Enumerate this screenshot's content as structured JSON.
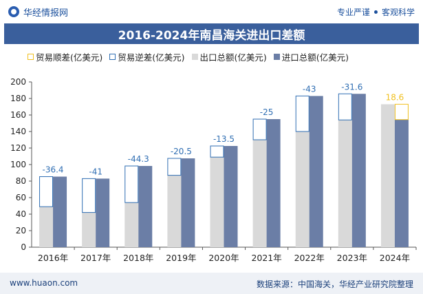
{
  "header": {
    "brand": "华经情报网",
    "tagline_a": "专业严谨",
    "tagline_b": "客观科学"
  },
  "title": "2016-2024年南昌海关进出口差额",
  "legend": [
    {
      "label": "贸易顺差(亿美元)",
      "color": "#f0c020",
      "outline": true
    },
    {
      "label": "贸易逆差(亿美元)",
      "color": "#2f6eb3",
      "outline": true
    },
    {
      "label": "出口总额(亿美元)",
      "color": "#d9d9d9",
      "outline": false
    },
    {
      "label": "进口总额(亿美元)",
      "color": "#6b7ea6",
      "outline": false
    }
  ],
  "footer": {
    "website": "www.huaon.com",
    "source": "数据来源：中国海关，华经产业研究院整理"
  },
  "chart_data": {
    "type": "bar",
    "categories": [
      "2016年",
      "2017年",
      "2018年",
      "2019年",
      "2020年",
      "2021年",
      "2022年",
      "2023年",
      "2024年"
    ],
    "series": [
      {
        "name": "出口总额(亿美元)",
        "values": [
          49,
          42,
          54,
          87,
          109,
          130,
          140,
          154,
          173
        ],
        "color": "#d9d9d9"
      },
      {
        "name": "进口总额(亿美元)",
        "values": [
          85.4,
          83,
          98.3,
          107.5,
          122.5,
          155,
          183,
          185.6,
          154.4
        ],
        "color": "#6b7ea6"
      }
    ],
    "balance": [
      "-36.4",
      "-41",
      "-44.3",
      "-20.5",
      "-13.5",
      "-25",
      "-43",
      "-31.6",
      "18.6"
    ],
    "balance_colors": {
      "deficit": "#2f6eb3",
      "surplus": "#f0c020"
    },
    "ylim": [
      0,
      200
    ],
    "yticks": [
      0,
      20,
      40,
      60,
      80,
      100,
      120,
      140,
      160,
      180,
      200
    ],
    "grid": false
  }
}
